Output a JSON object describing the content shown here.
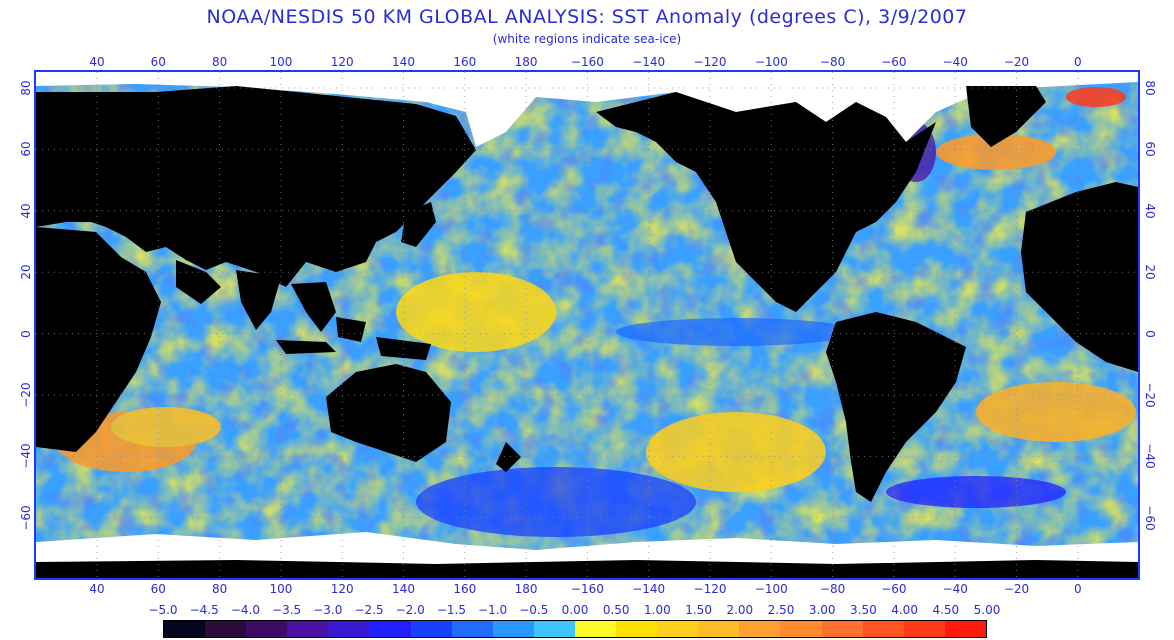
{
  "title": "NOAA/NESDIS 50 KM GLOBAL ANALYSIS: SST Anomaly (degrees C), 3/9/2007",
  "subtitle": "(white regions indicate sea-ice)",
  "lon_ticks": [
    "40",
    "60",
    "80",
    "100",
    "120",
    "140",
    "160",
    "180",
    "−160",
    "−140",
    "−120",
    "−100",
    "−80",
    "−60",
    "−40",
    "−20",
    "0"
  ],
  "lat_ticks": [
    "80",
    "60",
    "40",
    "20",
    "0",
    "−20",
    "−40",
    "−60"
  ],
  "colorbar": {
    "labels": [
      "−5.0",
      "−4.5",
      "−4.0",
      "−3.5",
      "−3.0",
      "−2.5",
      "−2.0",
      "−1.5",
      "−1.0",
      "−0.5",
      "0.00",
      "0.50",
      "1.00",
      "1.50",
      "2.00",
      "2.50",
      "3.00",
      "3.50",
      "4.00",
      "4.50",
      "5.00"
    ],
    "colors": [
      "#05051e",
      "#2a0a38",
      "#3d0a66",
      "#4b10a0",
      "#3a1ad0",
      "#2020ff",
      "#1a40ff",
      "#1f6cff",
      "#2a96ff",
      "#3ec4ff",
      "#fbfb2a",
      "#ffe000",
      "#ffcf20",
      "#ffbb28",
      "#ffa030",
      "#ff8a30",
      "#ff7030",
      "#ff5520",
      "#ff3a18",
      "#ff1a10"
    ]
  },
  "colors": {
    "land": "#000000",
    "ice": "#ffffff",
    "ocean_base": "#3aa0ff",
    "text": "#2b2bd6",
    "frame": "#1a3bff"
  }
}
